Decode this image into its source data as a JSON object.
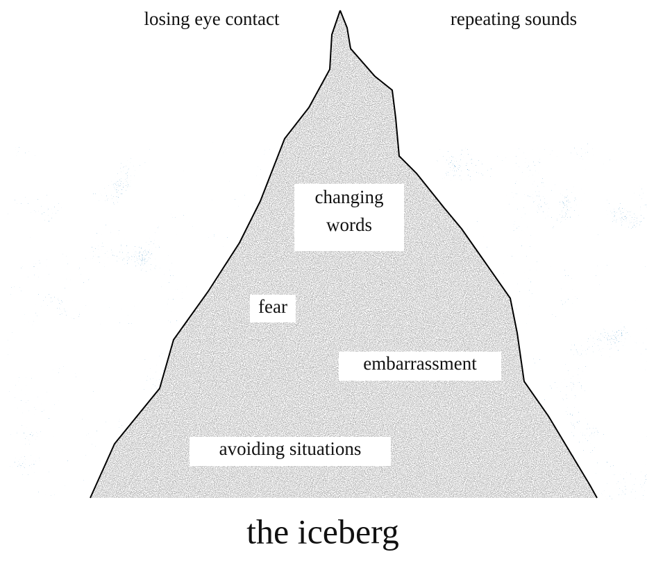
{
  "above_water": [
    "losing eye contact",
    "repeating sounds"
  ],
  "below_water": [
    [
      "changing",
      "words"
    ],
    [
      "fear"
    ],
    [
      "embarrassment"
    ],
    [
      "avoiding situations"
    ]
  ],
  "caption": "the iceberg"
}
